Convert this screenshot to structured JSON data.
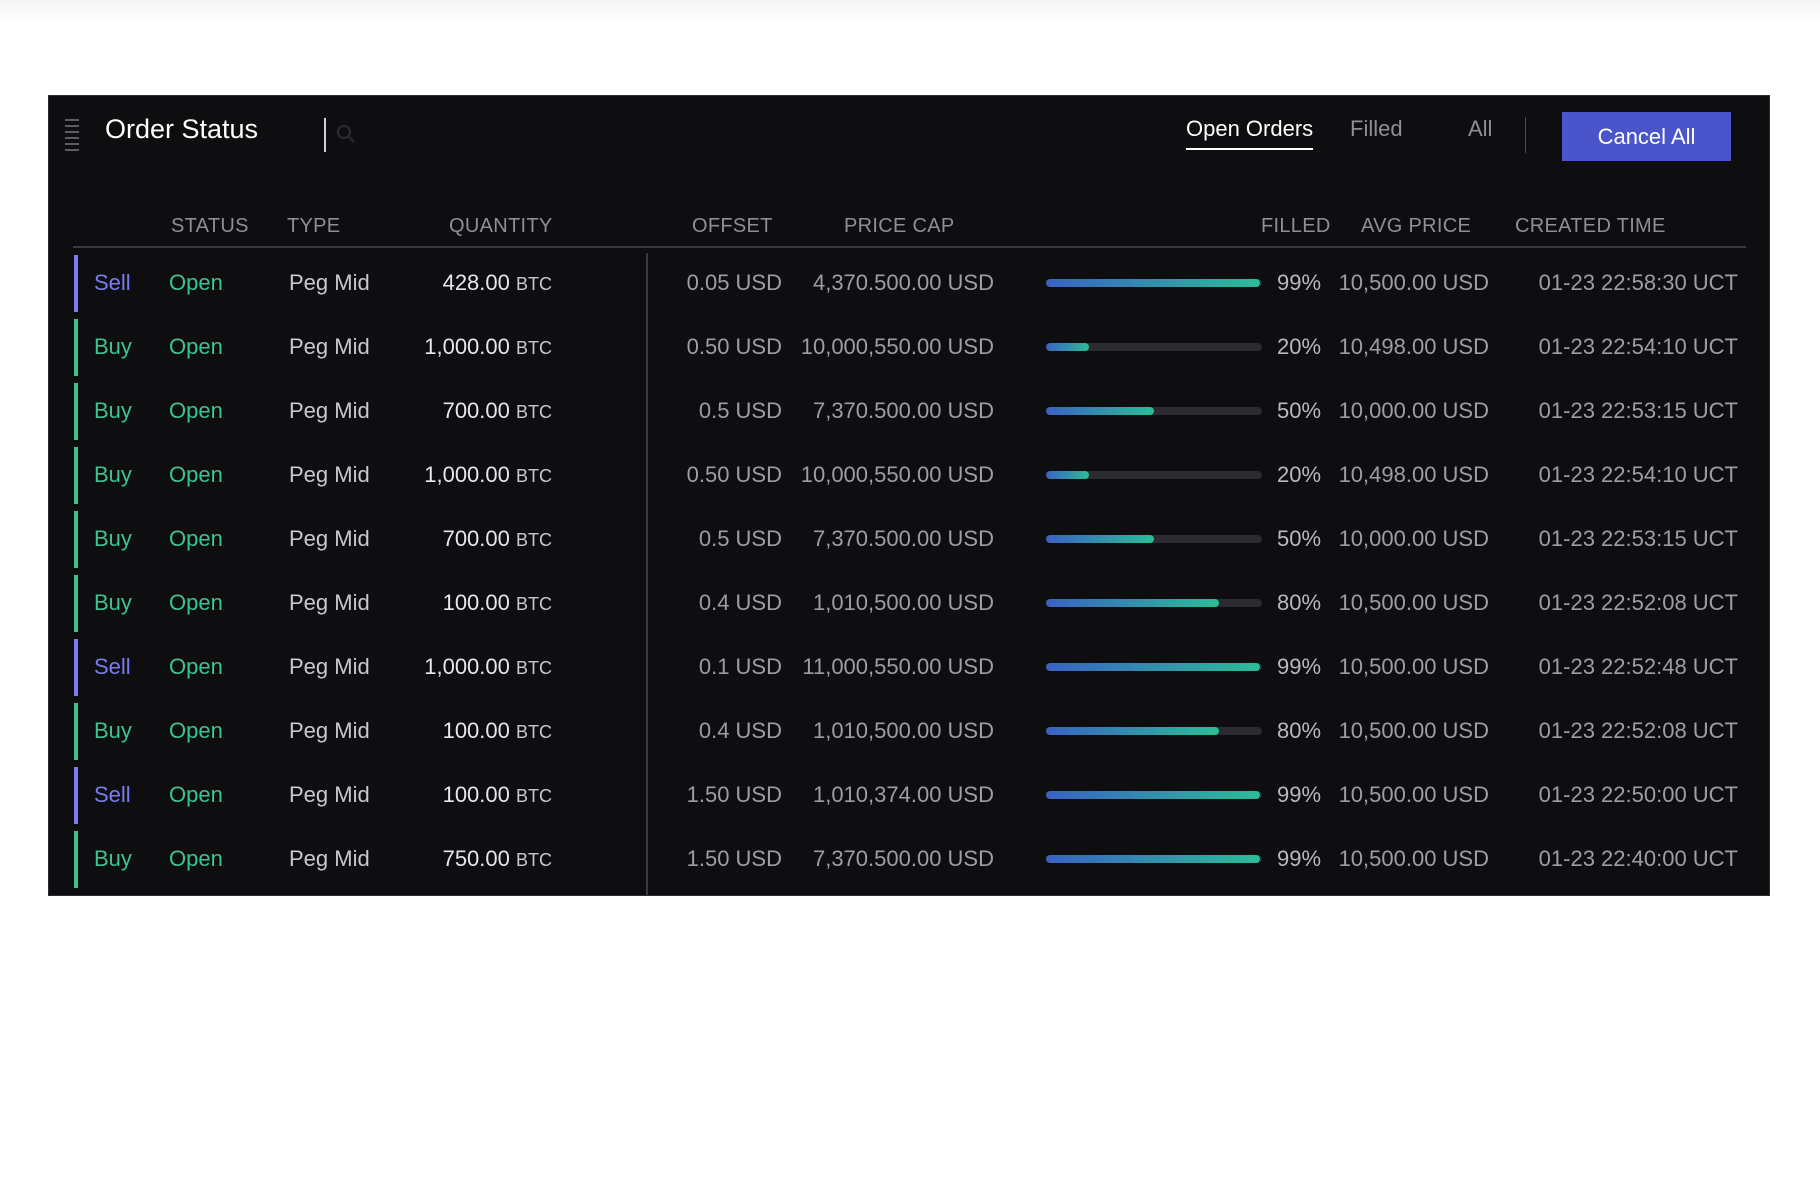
{
  "panel": {
    "title": "Order Status",
    "tabs": [
      {
        "label": "Open Orders",
        "active": true
      },
      {
        "label": "Filled",
        "active": false
      },
      {
        "label": "All",
        "active": false
      }
    ],
    "cancel_all_label": "Cancel All"
  },
  "colors": {
    "buy": "#3cc48e",
    "sell": "#7c7cf2",
    "open": "#3cc48e",
    "accent_button": "#4a55cc"
  },
  "table": {
    "headers": {
      "status": "STATUS",
      "type": "TYPE",
      "quantity": "QUANTITY",
      "offset": "OFFSET",
      "price_cap": "PRICE CAP",
      "filled": "FILLED",
      "avg_price": "AVG PRICE",
      "created_time": "CREATED TIME"
    },
    "rows": [
      {
        "side": "Sell",
        "status": "Open",
        "type": "Peg Mid",
        "qty": "428.00",
        "unit": "BTC",
        "offset": "0.05 USD",
        "price_cap": "4,370.500.00 USD",
        "filled_pct": 99,
        "filled_label": "99%",
        "avg_price": "10,500.00 USD",
        "created": "01-23 22:58:30 UCT"
      },
      {
        "side": "Buy",
        "status": "Open",
        "type": "Peg Mid",
        "qty": "1,000.00",
        "unit": "BTC",
        "offset": "0.50 USD",
        "price_cap": "10,000,550.00 USD",
        "filled_pct": 20,
        "filled_label": "20%",
        "avg_price": "10,498.00 USD",
        "created": "01-23 22:54:10 UCT"
      },
      {
        "side": "Buy",
        "status": "Open",
        "type": "Peg Mid",
        "qty": "700.00",
        "unit": "BTC",
        "offset": "0.5 USD",
        "price_cap": "7,370.500.00 USD",
        "filled_pct": 50,
        "filled_label": "50%",
        "avg_price": "10,000.00 USD",
        "created": "01-23 22:53:15 UCT"
      },
      {
        "side": "Buy",
        "status": "Open",
        "type": "Peg Mid",
        "qty": "1,000.00",
        "unit": "BTC",
        "offset": "0.50 USD",
        "price_cap": "10,000,550.00 USD",
        "filled_pct": 20,
        "filled_label": "20%",
        "avg_price": "10,498.00 USD",
        "created": "01-23 22:54:10 UCT"
      },
      {
        "side": "Buy",
        "status": "Open",
        "type": "Peg Mid",
        "qty": "700.00",
        "unit": "BTC",
        "offset": "0.5 USD",
        "price_cap": "7,370.500.00 USD",
        "filled_pct": 50,
        "filled_label": "50%",
        "avg_price": "10,000.00 USD",
        "created": "01-23 22:53:15 UCT"
      },
      {
        "side": "Buy",
        "status": "Open",
        "type": "Peg Mid",
        "qty": "100.00",
        "unit": "BTC",
        "offset": "0.4 USD",
        "price_cap": "1,010,500.00 USD",
        "filled_pct": 80,
        "filled_label": "80%",
        "avg_price": "10,500.00 USD",
        "created": "01-23 22:52:08 UCT"
      },
      {
        "side": "Sell",
        "status": "Open",
        "type": "Peg Mid",
        "qty": "1,000.00",
        "unit": "BTC",
        "offset": "0.1 USD",
        "price_cap": "11,000,550.00 USD",
        "filled_pct": 99,
        "filled_label": "99%",
        "avg_price": "10,500.00 USD",
        "created": "01-23 22:52:48 UCT"
      },
      {
        "side": "Buy",
        "status": "Open",
        "type": "Peg Mid",
        "qty": "100.00",
        "unit": "BTC",
        "offset": "0.4 USD",
        "price_cap": "1,010,500.00 USD",
        "filled_pct": 80,
        "filled_label": "80%",
        "avg_price": "10,500.00 USD",
        "created": "01-23 22:52:08 UCT"
      },
      {
        "side": "Sell",
        "status": "Open",
        "type": "Peg Mid",
        "qty": "100.00",
        "unit": "BTC",
        "offset": "1.50 USD",
        "price_cap": "1,010,374.00 USD",
        "filled_pct": 99,
        "filled_label": "99%",
        "avg_price": "10,500.00 USD",
        "created": "01-23 22:50:00 UCT"
      },
      {
        "side": "Buy",
        "status": "Open",
        "type": "Peg Mid",
        "qty": "750.00",
        "unit": "BTC",
        "offset": "1.50 USD",
        "price_cap": "7,370.500.00 USD",
        "filled_pct": 99,
        "filled_label": "99%",
        "avg_price": "10,500.00 USD",
        "created": "01-23 22:40:00 UCT"
      }
    ]
  }
}
